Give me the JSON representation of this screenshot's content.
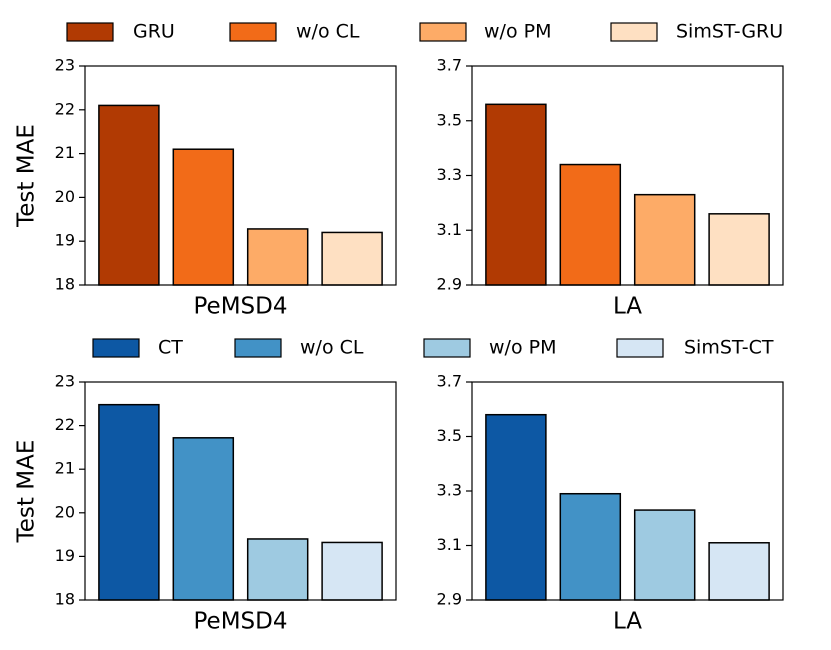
{
  "chart_data": [
    {
      "type": "bar",
      "ylabel": "Test MAE",
      "categories": [
        "PeMSD4",
        "LA"
      ],
      "panels": [
        {
          "ylim": [
            18,
            23
          ],
          "yticks": [
            18,
            19,
            20,
            21,
            22,
            23
          ]
        },
        {
          "ylim": [
            2.9,
            3.7
          ],
          "yticks": [
            2.9,
            3.1,
            3.3,
            3.5,
            3.7
          ]
        }
      ],
      "series": [
        {
          "name": "GRU",
          "color": "#b13a03",
          "values": [
            22.1,
            3.56
          ]
        },
        {
          "name": "w/o CL",
          "color": "#f26b18",
          "values": [
            21.1,
            3.34
          ]
        },
        {
          "name": "w/o PM",
          "color": "#fdab67",
          "values": [
            19.28,
            3.23
          ]
        },
        {
          "name": "SimST-GRU",
          "color": "#fee0c2",
          "values": [
            19.2,
            3.16
          ]
        }
      ]
    },
    {
      "type": "bar",
      "ylabel": "Test MAE",
      "categories": [
        "PeMSD4",
        "LA"
      ],
      "panels": [
        {
          "ylim": [
            18,
            23
          ],
          "yticks": [
            18,
            19,
            20,
            21,
            22,
            23
          ]
        },
        {
          "ylim": [
            2.9,
            3.7
          ],
          "yticks": [
            2.9,
            3.1,
            3.3,
            3.5,
            3.7
          ]
        }
      ],
      "series": [
        {
          "name": "CT",
          "color": "#0d58a4",
          "values": [
            22.48,
            3.58
          ]
        },
        {
          "name": "w/o CL",
          "color": "#4292c6",
          "values": [
            21.72,
            3.29
          ]
        },
        {
          "name": "w/o PM",
          "color": "#9ecae1",
          "values": [
            19.4,
            3.23
          ]
        },
        {
          "name": "SimST-CT",
          "color": "#d6e6f4",
          "values": [
            19.32,
            3.11
          ]
        }
      ]
    }
  ]
}
